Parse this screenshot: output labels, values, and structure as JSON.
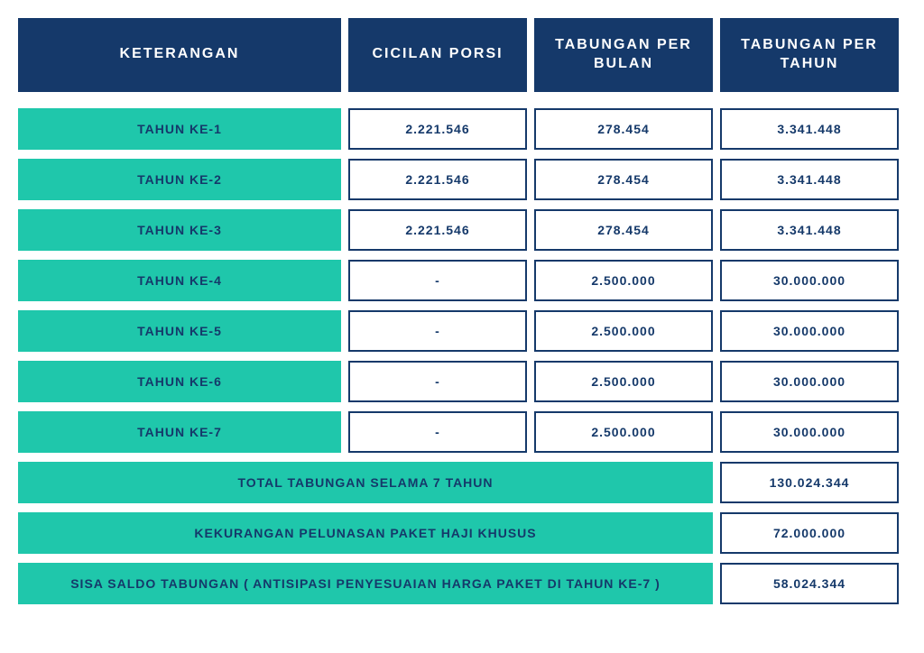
{
  "colors": {
    "navy": "#15396a",
    "teal": "#1fc7ab",
    "white": "#ffffff",
    "text_navy": "#15396a"
  },
  "headers": {
    "keterangan": "KETERANGAN",
    "cicilan": "CICILAN PORSI",
    "tabungan_bulan": "TABUNGAN PER BULAN",
    "tabungan_tahun": "TABUNGAN PER TAHUN"
  },
  "rows": [
    {
      "label": "TAHUN KE-1",
      "cicilan": "2.221.546",
      "per_bulan": "278.454",
      "per_tahun": "3.341.448"
    },
    {
      "label": "TAHUN KE-2",
      "cicilan": "2.221.546",
      "per_bulan": "278.454",
      "per_tahun": "3.341.448"
    },
    {
      "label": "TAHUN KE-3",
      "cicilan": "2.221.546",
      "per_bulan": "278.454",
      "per_tahun": "3.341.448"
    },
    {
      "label": "TAHUN KE-4",
      "cicilan": "-",
      "per_bulan": "2.500.000",
      "per_tahun": "30.000.000"
    },
    {
      "label": "TAHUN KE-5",
      "cicilan": "-",
      "per_bulan": "2.500.000",
      "per_tahun": "30.000.000"
    },
    {
      "label": "TAHUN KE-6",
      "cicilan": "-",
      "per_bulan": "2.500.000",
      "per_tahun": "30.000.000"
    },
    {
      "label": "TAHUN KE-7",
      "cicilan": "-",
      "per_bulan": "2.500.000",
      "per_tahun": "30.000.000"
    }
  ],
  "summaries": [
    {
      "label": "TOTAL TABUNGAN SELAMA 7 TAHUN",
      "value": "130.024.344"
    },
    {
      "label": "KEKURANGAN PELUNASAN PAKET HAJI KHUSUS",
      "value": "72.000.000"
    },
    {
      "label": "SISA SALDO TABUNGAN ( ANTISIPASI PENYESUAIAN HARGA PAKET DI TAHUN KE-7 )",
      "value": "58.024.344"
    }
  ]
}
